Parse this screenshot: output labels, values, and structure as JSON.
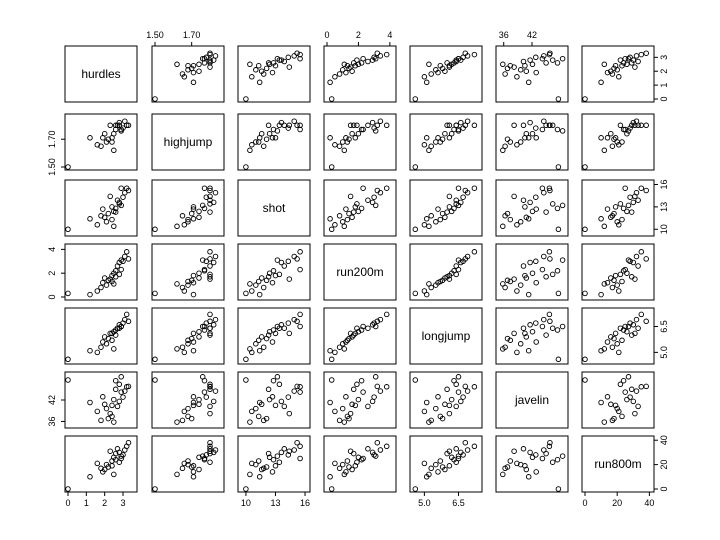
{
  "chart_data": {
    "type": "scatter",
    "variables": [
      "hurdles",
      "highjump",
      "shot",
      "run200m",
      "longjump",
      "javelin",
      "run800m"
    ],
    "ranges": [
      [
        0,
        3.6
      ],
      [
        1.5,
        1.86
      ],
      [
        9.5,
        16.2
      ],
      [
        0,
        4.2
      ],
      [
        4.5,
        7.4
      ],
      [
        35,
        49
      ],
      [
        0,
        41
      ]
    ],
    "axes": {
      "top": [
        {
          "var": 1,
          "ticks": [
            "1.50",
            "1.70"
          ],
          "values": [
            1.5,
            1.7
          ]
        },
        {
          "var": 3,
          "ticks": [
            "0",
            "2",
            "4"
          ],
          "values": [
            0,
            2,
            4
          ]
        },
        {
          "var": 5,
          "ticks": [
            "36",
            "42"
          ],
          "values": [
            36,
            42
          ]
        }
      ],
      "bottom": [
        {
          "var": 0,
          "ticks": [
            "0",
            "1",
            "2",
            "3"
          ],
          "values": [
            0,
            1,
            2,
            3
          ]
        },
        {
          "var": 2,
          "ticks": [
            "10",
            "13",
            "16"
          ],
          "values": [
            10,
            13,
            16
          ]
        },
        {
          "var": 4,
          "ticks": [
            "5.0",
            "6.5"
          ],
          "values": [
            5.0,
            6.5
          ]
        },
        {
          "var": 6,
          "ticks": [
            "0",
            "20",
            "40"
          ],
          "values": [
            0,
            20,
            40
          ]
        }
      ],
      "left": [
        {
          "var": 1,
          "ticks": [
            "1.50",
            "1.70"
          ],
          "values": [
            1.5,
            1.7
          ]
        },
        {
          "var": 3,
          "ticks": [
            "0",
            "2",
            "4"
          ],
          "values": [
            0,
            2,
            4
          ]
        },
        {
          "var": 5,
          "ticks": [
            "36",
            "42"
          ],
          "values": [
            36,
            42
          ]
        }
      ],
      "right": [
        {
          "var": 0,
          "ticks": [
            "0",
            "1",
            "2",
            "3"
          ],
          "values": [
            0,
            1,
            2,
            3
          ]
        },
        {
          "var": 2,
          "ticks": [
            "10",
            "13",
            "16"
          ],
          "values": [
            10,
            13,
            16
          ]
        },
        {
          "var": 4,
          "ticks": [
            "5.0",
            "6.5"
          ],
          "values": [
            5.0,
            6.5
          ]
        },
        {
          "var": 6,
          "ticks": [
            "0",
            "20",
            "40"
          ],
          "values": [
            0,
            20,
            40
          ]
        }
      ]
    },
    "observations": [
      [
        3.2,
        1.8,
        15.5,
        3.8,
        7.2,
        45.7,
        35
      ],
      [
        3.1,
        1.83,
        14.9,
        3.4,
        6.9,
        44.5,
        32
      ],
      [
        3.3,
        1.8,
        15.2,
        3.2,
        6.8,
        45.8,
        38
      ],
      [
        3.0,
        1.78,
        14.3,
        3.0,
        6.7,
        42.8,
        28
      ],
      [
        2.8,
        1.82,
        13.6,
        2.9,
        6.6,
        41.6,
        30
      ],
      [
        2.9,
        1.76,
        13.2,
        3.1,
        6.5,
        48.5,
        27
      ],
      [
        2.7,
        1.8,
        13.9,
        2.6,
        6.4,
        40.2,
        33
      ],
      [
        2.6,
        1.77,
        12.8,
        2.2,
        6.3,
        47.4,
        24
      ],
      [
        2.5,
        1.74,
        12.4,
        2.0,
        6.2,
        42.1,
        26
      ],
      [
        2.8,
        1.8,
        13.4,
        1.9,
        6.4,
        46.4,
        22
      ],
      [
        2.4,
        1.71,
        13.0,
        1.8,
        6.1,
        40.5,
        19
      ],
      [
        2.6,
        1.8,
        12.3,
        1.7,
        6.0,
        45.0,
        29
      ],
      [
        2.9,
        1.77,
        15.5,
        2.3,
        6.5,
        44.2,
        25
      ],
      [
        2.3,
        1.8,
        14.4,
        1.5,
        6.1,
        38.2,
        31
      ],
      [
        2.2,
        1.7,
        12.1,
        1.4,
        5.8,
        36.8,
        18
      ],
      [
        2.0,
        1.74,
        11.6,
        1.6,
        5.9,
        40.8,
        16
      ],
      [
        2.4,
        1.68,
        11.3,
        1.3,
        5.7,
        37.4,
        23
      ],
      [
        1.9,
        1.71,
        12.7,
        1.2,
        5.6,
        42.9,
        14
      ],
      [
        2.1,
        1.68,
        11.0,
        1.0,
        5.5,
        39.6,
        20
      ],
      [
        1.8,
        1.65,
        11.8,
        0.8,
        5.3,
        36.3,
        17
      ],
      [
        1.6,
        1.66,
        10.6,
        0.5,
        5.0,
        38.8,
        21
      ],
      [
        2.5,
        1.62,
        10.4,
        1.1,
        5.2,
        35.8,
        12
      ],
      [
        1.2,
        1.71,
        11.4,
        0.2,
        5.1,
        41.3,
        10
      ],
      [
        0.0,
        1.5,
        10.0,
        0.3,
        4.6,
        47.6,
        0
      ]
    ]
  }
}
